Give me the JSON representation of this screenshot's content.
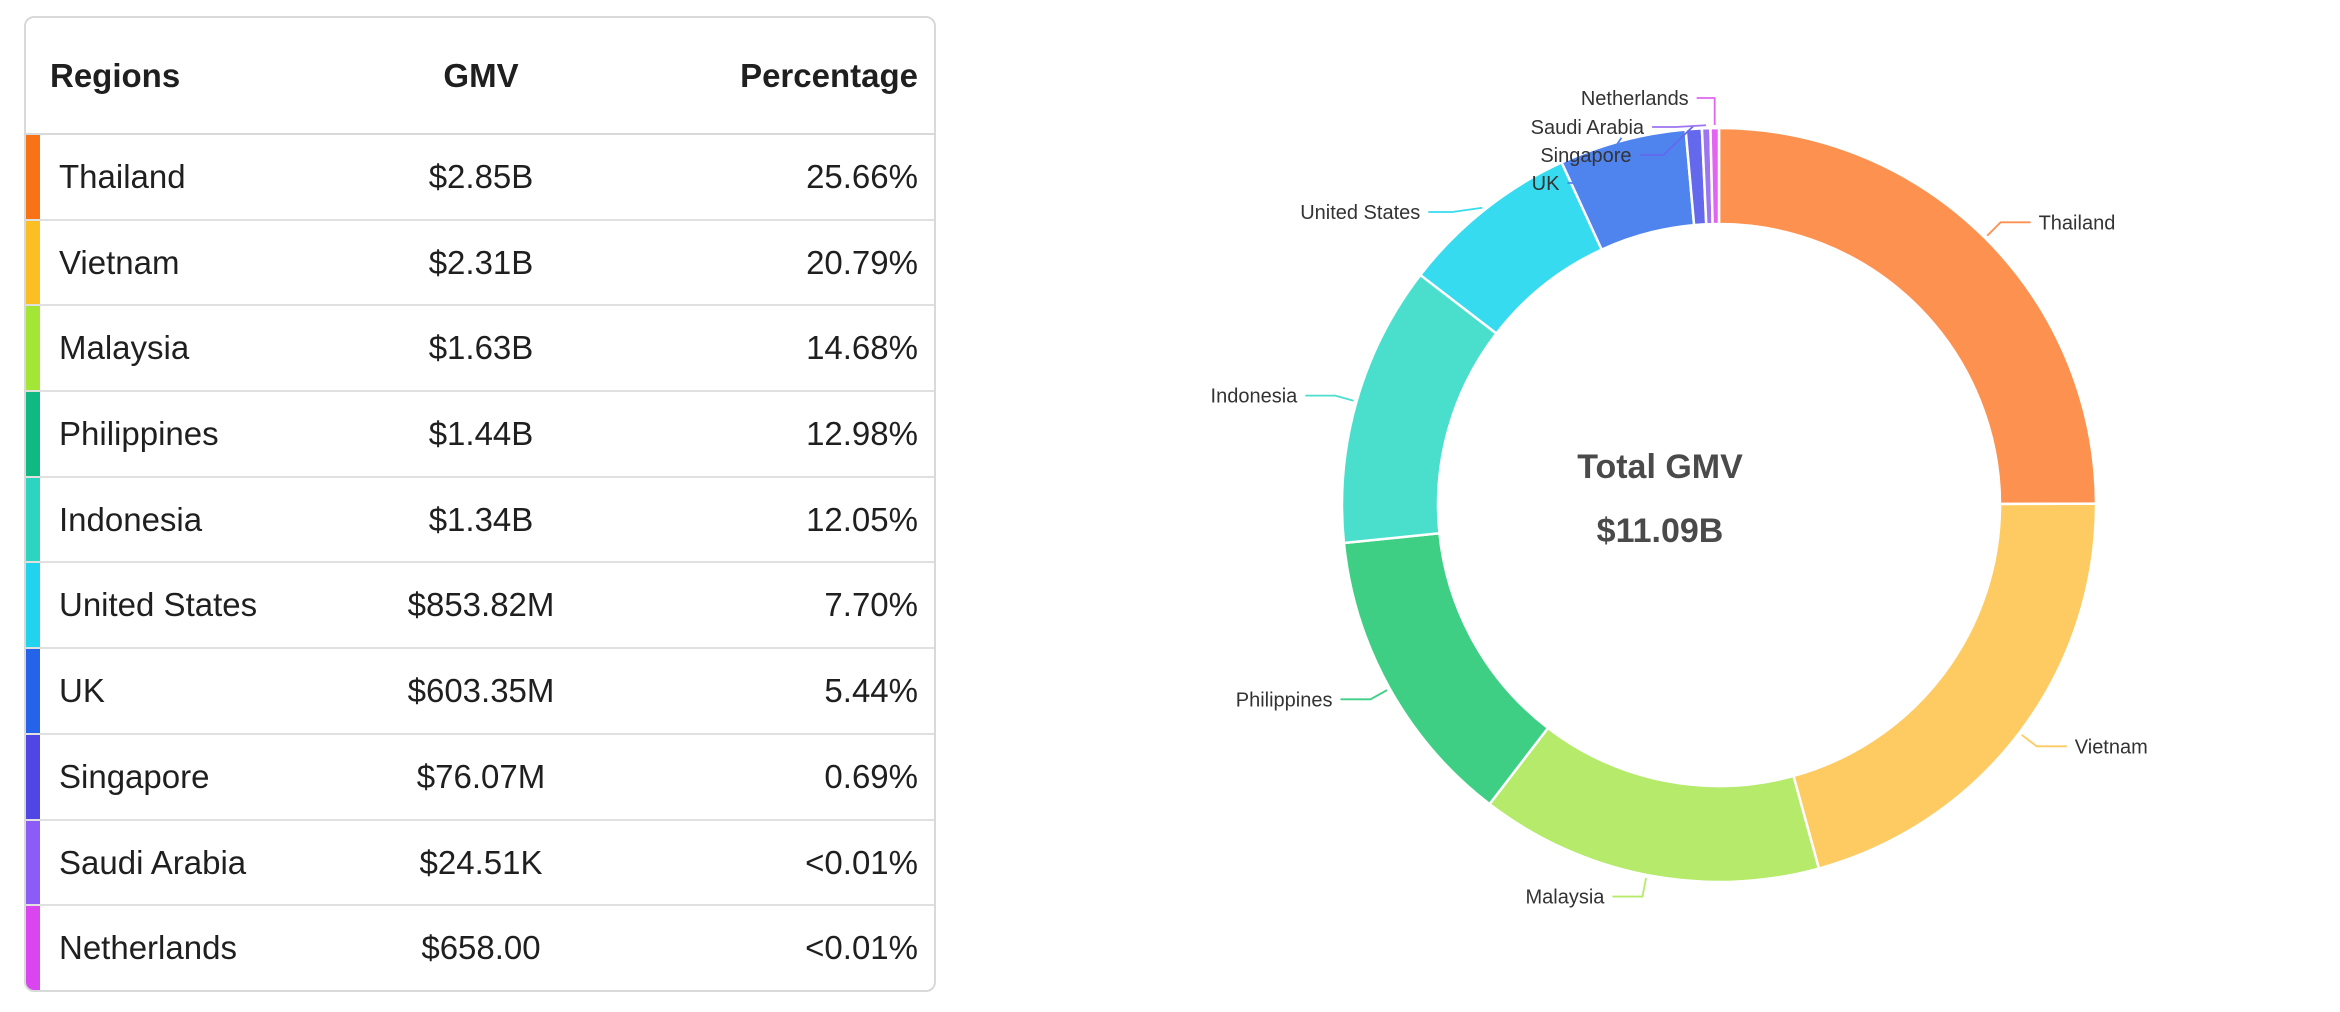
{
  "table": {
    "headers": {
      "regions": "Regions",
      "gmv": "GMV",
      "percentage": "Percentage"
    },
    "rows": [
      {
        "region": "Thailand",
        "gmv": "$2.85B",
        "percentage": "25.66%",
        "color": "#f97316"
      },
      {
        "region": "Vietnam",
        "gmv": "$2.31B",
        "percentage": "20.79%",
        "color": "#fbbf24"
      },
      {
        "region": "Malaysia",
        "gmv": "$1.63B",
        "percentage": "14.68%",
        "color": "#a3e635"
      },
      {
        "region": "Philippines",
        "gmv": "$1.44B",
        "percentage": "12.98%",
        "color": "#10b981"
      },
      {
        "region": "Indonesia",
        "gmv": "$1.34B",
        "percentage": "12.05%",
        "color": "#2dd4bf"
      },
      {
        "region": "United States",
        "gmv": "$853.82M",
        "percentage": "7.70%",
        "color": "#22d3ee"
      },
      {
        "region": "UK",
        "gmv": "$603.35M",
        "percentage": "5.44%",
        "color": "#2563eb"
      },
      {
        "region": "Singapore",
        "gmv": "$76.07M",
        "percentage": "0.69%",
        "color": "#4f46e5"
      },
      {
        "region": "Saudi Arabia",
        "gmv": "$24.51K",
        "percentage": "<0.01%",
        "color": "#8b5cf6"
      },
      {
        "region": "Netherlands",
        "gmv": "$658.00",
        "percentage": "<0.01%",
        "color": "#d946ef"
      }
    ]
  },
  "chart_data": {
    "type": "pie",
    "variant": "donut",
    "center_title": "Total GMV",
    "center_value": "$11.09B",
    "categories": [
      "Thailand",
      "Vietnam",
      "Malaysia",
      "Philippines",
      "Indonesia",
      "United States",
      "UK",
      "Singapore",
      "Saudi Arabia",
      "Netherlands"
    ],
    "values": [
      25.66,
      20.79,
      14.68,
      12.98,
      12.05,
      7.7,
      5.44,
      0.69,
      0.0002,
      6e-06
    ],
    "colors": [
      "#fc9150",
      "#fdcb62",
      "#b5ea6b",
      "#3ecf85",
      "#4adfcd",
      "#36dbf0",
      "#4f84ef",
      "#6468ec",
      "#9d74f2",
      "#e264f0"
    ],
    "legend": "none",
    "labels": "outside"
  }
}
